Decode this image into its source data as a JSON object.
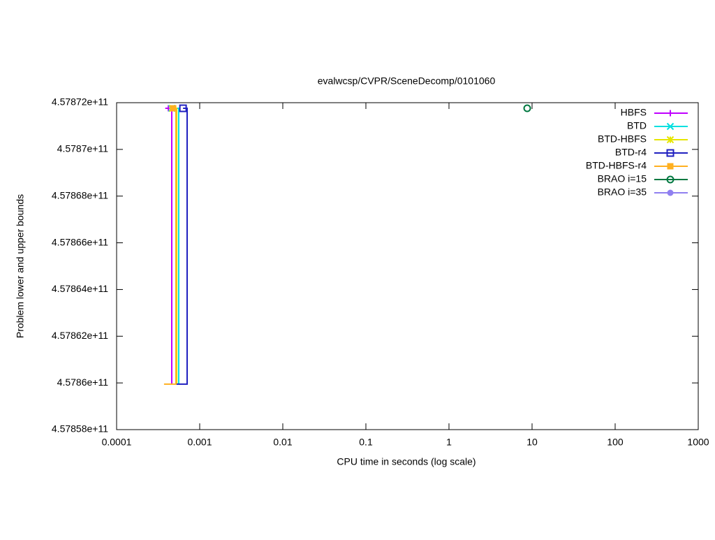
{
  "chart_data": {
    "type": "line",
    "title": "evalwcsp/CVPR/SceneDecomp/0101060",
    "x_label": "CPU time in seconds (log scale)",
    "y_label": "Problem lower and upper bounds",
    "x_scale": "log",
    "xlim": [
      0.0001,
      1000
    ],
    "xticks": [
      0.0001,
      0.001,
      0.01,
      0.1,
      1,
      10,
      100,
      1000
    ],
    "ylim": [
      457858000000,
      457872000000
    ],
    "yticks": [
      {
        "value": 457858000000,
        "label": "4.57858e+11"
      },
      {
        "value": 457860000000,
        "label": "4.5786e+11"
      },
      {
        "value": 457862000000,
        "label": "4.57862e+11"
      },
      {
        "value": 457864000000,
        "label": "4.57864e+11"
      },
      {
        "value": 457866000000,
        "label": "4.57866e+11"
      },
      {
        "value": 457868000000,
        "label": "4.57868e+11"
      },
      {
        "value": 457870000000,
        "label": "4.5787e+11"
      },
      {
        "value": 457872000000,
        "label": "4.57872e+11"
      }
    ],
    "legend": "top-right",
    "series": [
      {
        "name": "HBFS",
        "color": "#c000ff",
        "marker": "plus",
        "x": [
          0.00042,
          0.000461,
          0.000461
        ],
        "y": [
          457871760000,
          457871760000,
          457859950000
        ]
      },
      {
        "name": "BTD",
        "color": "#00e0e0",
        "marker": "cross",
        "x": [
          0.00046,
          0.000559,
          0.000559
        ],
        "y": [
          457871760000,
          457871760000,
          457859950000
        ]
      },
      {
        "name": "BTD-HBFS",
        "color": "#e6e600",
        "marker": "star",
        "x": [
          0.00047,
          0.000529,
          0.000529
        ],
        "y": [
          457871760000,
          457871760000,
          457859950000
        ]
      },
      {
        "name": "BTD-r4",
        "color": "#2020c0",
        "marker": "square",
        "x": [
          0.00063,
          0.000706,
          0.000706,
          0.000518
        ],
        "y": [
          457871760000,
          457871760000,
          457859950000,
          457859950000
        ]
      },
      {
        "name": "BTD-HBFS-r4",
        "color": "#ffb020",
        "marker": "filled-square",
        "x": [
          0.00048,
          0.000518,
          0.000518,
          0.000372
        ],
        "y": [
          457871760000,
          457871760000,
          457859950000,
          457859950000
        ]
      },
      {
        "name": "BRAO i=15",
        "color": "#007840",
        "marker": "circle",
        "x": [
          8.74
        ],
        "y": [
          457871760000
        ]
      },
      {
        "name": "BRAO i=35",
        "color": "#9080f0",
        "marker": "filled-circle",
        "x": [],
        "y": []
      }
    ]
  }
}
